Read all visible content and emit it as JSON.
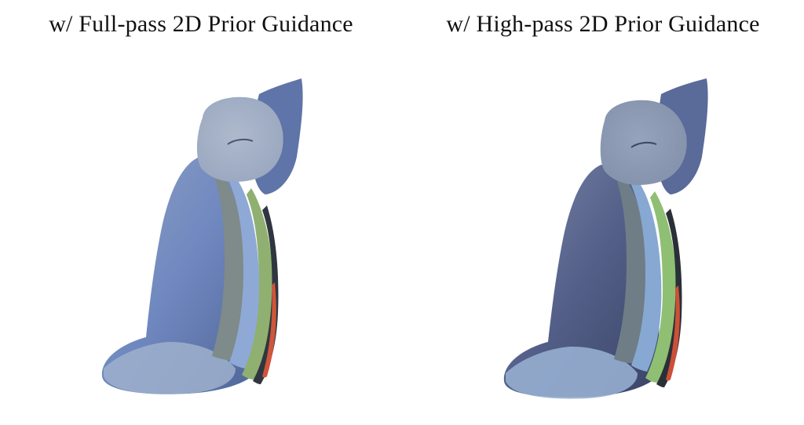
{
  "panels": [
    {
      "title": "w/ Full-pass 2D Prior Guidance",
      "colors": {
        "body_top": "#8ea0c4",
        "body_mid": "#6f88bf",
        "body_dark": "#4f6597",
        "head": "#9aa8c0",
        "ear": "#5f74a8",
        "stripe_gray": "#7f8a8a",
        "stripe_light": "#8fa9d6",
        "stripe_green": "#8fb070",
        "edge_dark": "#2f3640",
        "edge_red": "#d0553a",
        "base": "#9fb0cc"
      }
    },
    {
      "title": "w/ High-pass 2D Prior Guidance",
      "colors": {
        "body_top": "#7a86a8",
        "body_mid": "#535f88",
        "body_dark": "#3a4466",
        "head": "#8592ac",
        "ear": "#5a6a99",
        "stripe_gray": "#6f7d86",
        "stripe_light": "#86a8d2",
        "stripe_green": "#8fbf73",
        "edge_dark": "#2a3038",
        "edge_red": "#cc5038",
        "base": "#96aed0"
      }
    }
  ]
}
